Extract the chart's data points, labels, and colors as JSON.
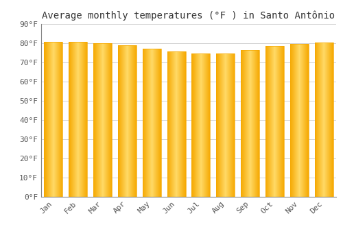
{
  "title": "Average monthly temperatures (°F ) in Santo Antônio",
  "months": [
    "Jan",
    "Feb",
    "Mar",
    "Apr",
    "May",
    "Jun",
    "Jul",
    "Aug",
    "Sep",
    "Oct",
    "Nov",
    "Dec"
  ],
  "values": [
    80.6,
    80.6,
    79.9,
    78.8,
    77.2,
    75.6,
    74.7,
    74.8,
    76.3,
    78.6,
    79.7,
    80.4
  ],
  "ylim": [
    0,
    90
  ],
  "yticks": [
    0,
    10,
    20,
    30,
    40,
    50,
    60,
    70,
    80,
    90
  ],
  "bar_color_center": "#FFD966",
  "bar_color_edge": "#F5A800",
  "background_color": "#ffffff",
  "plot_bg_color": "#ffffff",
  "grid_color": "#cccccc",
  "title_fontsize": 10,
  "tick_fontsize": 8,
  "tick_color": "#555555",
  "font_family": "monospace"
}
